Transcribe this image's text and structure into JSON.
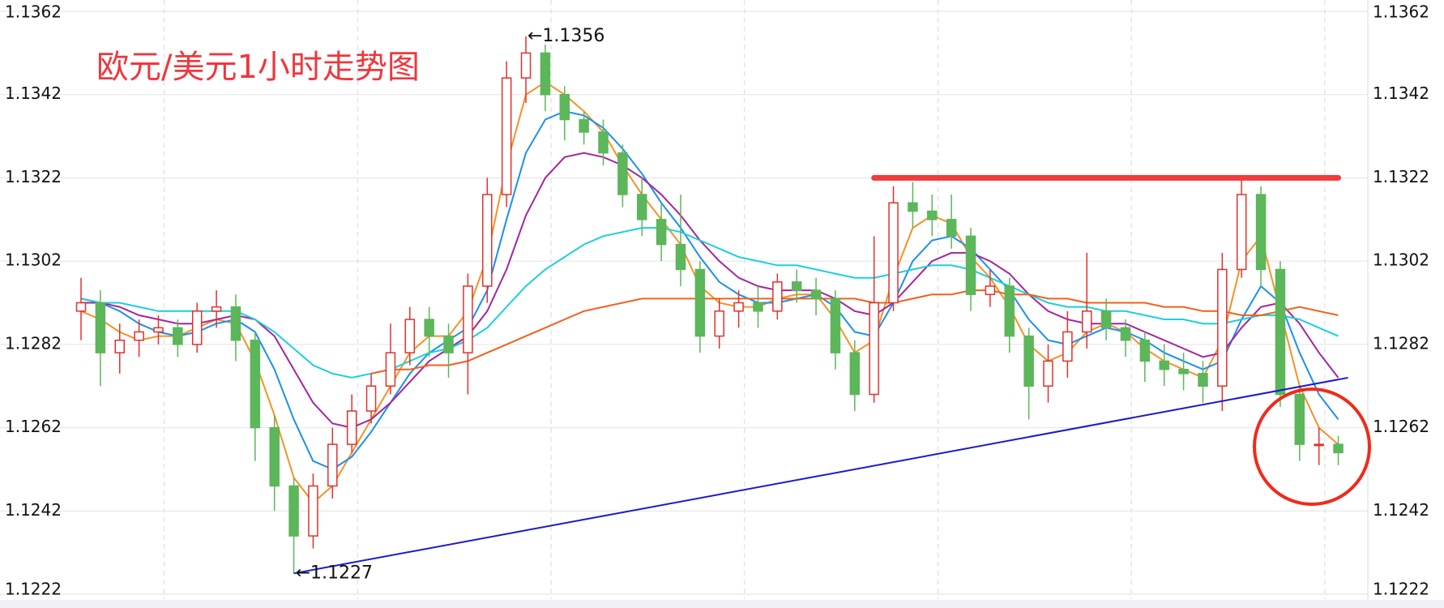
{
  "chart_data": {
    "type": "candlestick",
    "title": "欧元/美元1小时走势图",
    "ylim": [
      1.1222,
      1.1362
    ],
    "yticks": [
      1.1222,
      1.1242,
      1.1262,
      1.1282,
      1.1302,
      1.1322,
      1.1342,
      1.1362
    ],
    "grid": true,
    "up_color": "#e3302d",
    "down_color": "#5cb65a",
    "open": [
      1.129,
      1.1292,
      1.128,
      1.1283,
      1.1285,
      1.1286,
      1.1282,
      1.129,
      1.1291,
      1.1283,
      1.1262,
      1.1248,
      1.1236,
      1.1248,
      1.1258,
      1.1266,
      1.1272,
      1.128,
      1.1288,
      1.1284,
      1.128,
      1.1296,
      1.1318,
      1.1346,
      1.1352,
      1.1342,
      1.1336,
      1.1333,
      1.1328,
      1.1318,
      1.1312,
      1.1306,
      1.13,
      1.1284,
      1.129,
      1.1292,
      1.129,
      1.1297,
      1.1295,
      1.1293,
      1.128,
      1.127,
      1.1292,
      1.1316,
      1.1314,
      1.1312,
      1.1308,
      1.1294,
      1.1296,
      1.1284,
      1.1272,
      1.1278,
      1.1285,
      1.129,
      1.1286,
      1.1283,
      1.1278,
      1.1276,
      1.1275,
      1.1272,
      1.13,
      1.1318,
      1.13,
      1.127,
      1.1258,
      1.1258
    ],
    "high": [
      1.1298,
      1.1295,
      1.1287,
      1.1288,
      1.1289,
      1.1288,
      1.1292,
      1.1295,
      1.1294,
      1.1285,
      1.1265,
      1.125,
      1.1251,
      1.1262,
      1.127,
      1.1275,
      1.1287,
      1.1291,
      1.1291,
      1.1287,
      1.1299,
      1.1322,
      1.135,
      1.1356,
      1.1354,
      1.1344,
      1.1338,
      1.1336,
      1.133,
      1.1322,
      1.1316,
      1.1318,
      1.1302,
      1.1293,
      1.1295,
      1.1296,
      1.1299,
      1.13,
      1.1298,
      1.1295,
      1.1283,
      1.1308,
      1.132,
      1.1321,
      1.1318,
      1.1318,
      1.131,
      1.13,
      1.1298,
      1.1286,
      1.1282,
      1.129,
      1.1304,
      1.1293,
      1.1288,
      1.1285,
      1.1282,
      1.128,
      1.1278,
      1.1304,
      1.1322,
      1.132,
      1.1302,
      1.1272,
      1.1262,
      1.126
    ],
    "low": [
      1.1283,
      1.1272,
      1.1275,
      1.1279,
      1.1282,
      1.1279,
      1.128,
      1.1286,
      1.1278,
      1.1254,
      1.1242,
      1.1227,
      1.1233,
      1.1245,
      1.1256,
      1.1263,
      1.127,
      1.1277,
      1.1279,
      1.1274,
      1.127,
      1.1292,
      1.1315,
      1.134,
      1.1338,
      1.1331,
      1.133,
      1.1325,
      1.1315,
      1.1308,
      1.1302,
      1.1296,
      1.128,
      1.1281,
      1.1286,
      1.1286,
      1.1288,
      1.1292,
      1.1289,
      1.1276,
      1.1266,
      1.1268,
      1.129,
      1.131,
      1.1308,
      1.1305,
      1.129,
      1.1291,
      1.128,
      1.1264,
      1.1268,
      1.1274,
      1.1281,
      1.1283,
      1.1279,
      1.1273,
      1.1272,
      1.1271,
      1.1268,
      1.1266,
      1.1298,
      1.1296,
      1.1267,
      1.1254,
      1.1253,
      1.1253
    ],
    "close": [
      1.1292,
      1.128,
      1.1283,
      1.1285,
      1.1286,
      1.1282,
      1.129,
      1.1291,
      1.1283,
      1.1262,
      1.1248,
      1.1236,
      1.1248,
      1.1258,
      1.1266,
      1.1272,
      1.128,
      1.1288,
      1.1284,
      1.128,
      1.1296,
      1.1318,
      1.1346,
      1.1352,
      1.1342,
      1.1336,
      1.1333,
      1.1328,
      1.1318,
      1.1312,
      1.1306,
      1.13,
      1.1284,
      1.129,
      1.1292,
      1.129,
      1.1297,
      1.1295,
      1.1293,
      1.128,
      1.127,
      1.1292,
      1.1316,
      1.1314,
      1.1312,
      1.1308,
      1.1294,
      1.1296,
      1.1284,
      1.1272,
      1.1278,
      1.1285,
      1.129,
      1.1286,
      1.1283,
      1.1278,
      1.1276,
      1.1275,
      1.1272,
      1.13,
      1.1318,
      1.13,
      1.127,
      1.1258,
      1.1258,
      1.1256
    ],
    "lines": [
      {
        "color": "#f39226",
        "values": [
          1.129,
          1.1288,
          1.1285,
          1.1283,
          1.1284,
          1.1284,
          1.1286,
          1.1288,
          1.1287,
          1.1278,
          1.1265,
          1.125,
          1.1244,
          1.1248,
          1.1256,
          1.1264,
          1.1272,
          1.128,
          1.1284,
          1.1284,
          1.129,
          1.1303,
          1.1325,
          1.1342,
          1.1345,
          1.1342,
          1.1338,
          1.1333,
          1.1325,
          1.1318,
          1.1312,
          1.1306,
          1.1296,
          1.1292,
          1.1291,
          1.1291,
          1.1293,
          1.1294,
          1.1294,
          1.1288,
          1.128,
          1.1283,
          1.1298,
          1.131,
          1.1313,
          1.1311,
          1.1303,
          1.1298,
          1.1291,
          1.1282,
          1.1278,
          1.128,
          1.1285,
          1.1287,
          1.1285,
          1.1281,
          1.1278,
          1.1276,
          1.1274,
          1.1283,
          1.1302,
          1.1308,
          1.129,
          1.1272,
          1.1262,
          1.1258
        ]
      },
      {
        "color": "#1c8ff0",
        "values": [
          1.1293,
          1.1292,
          1.129,
          1.1287,
          1.1285,
          1.1284,
          1.1285,
          1.1287,
          1.1288,
          1.1285,
          1.1276,
          1.1264,
          1.1254,
          1.1252,
          1.1255,
          1.1261,
          1.1268,
          1.1275,
          1.128,
          1.1283,
          1.1286,
          1.1295,
          1.1312,
          1.1328,
          1.1336,
          1.1338,
          1.1337,
          1.1334,
          1.1329,
          1.1323,
          1.1316,
          1.131,
          1.1303,
          1.1297,
          1.1294,
          1.1292,
          1.1292,
          1.1293,
          1.1294,
          1.1291,
          1.1285,
          1.1284,
          1.1292,
          1.1302,
          1.1307,
          1.1308,
          1.1305,
          1.13,
          1.1295,
          1.1288,
          1.1283,
          1.1282,
          1.1284,
          1.1286,
          1.1285,
          1.1283,
          1.128,
          1.1278,
          1.1276,
          1.1278,
          1.1288,
          1.1296,
          1.1292,
          1.128,
          1.127,
          1.1264
        ]
      },
      {
        "color": "#a5259e",
        "values": [
          1.1292,
          1.1292,
          1.1291,
          1.1289,
          1.1288,
          1.1287,
          1.1287,
          1.1288,
          1.1289,
          1.1288,
          1.1284,
          1.1276,
          1.1268,
          1.1263,
          1.1262,
          1.1264,
          1.1268,
          1.1273,
          1.1278,
          1.1281,
          1.1284,
          1.129,
          1.13,
          1.1313,
          1.1322,
          1.1327,
          1.1328,
          1.1327,
          1.1325,
          1.1322,
          1.1318,
          1.1313,
          1.1307,
          1.1302,
          1.1298,
          1.1296,
          1.1295,
          1.1295,
          1.1295,
          1.1293,
          1.129,
          1.1289,
          1.1292,
          1.1297,
          1.1302,
          1.1304,
          1.1304,
          1.1302,
          1.1299,
          1.1294,
          1.129,
          1.1288,
          1.1287,
          1.1287,
          1.1287,
          1.1285,
          1.1283,
          1.1281,
          1.1279,
          1.128,
          1.1286,
          1.1291,
          1.1292,
          1.1287,
          1.128,
          1.1274
        ]
      },
      {
        "color": "#1ccfdc",
        "values": [
          1.1293,
          1.1292,
          1.1292,
          1.1291,
          1.129,
          1.129,
          1.129,
          1.129,
          1.129,
          1.1288,
          1.1285,
          1.1281,
          1.1277,
          1.1275,
          1.1274,
          1.1275,
          1.1276,
          1.1278,
          1.128,
          1.1281,
          1.1283,
          1.1286,
          1.1291,
          1.1296,
          1.13,
          1.1303,
          1.1306,
          1.1308,
          1.1309,
          1.131,
          1.131,
          1.1309,
          1.1307,
          1.1305,
          1.1303,
          1.1302,
          1.1301,
          1.1301,
          1.13,
          1.1299,
          1.1298,
          1.1298,
          1.1299,
          1.13,
          1.1301,
          1.1301,
          1.13,
          1.1298,
          1.1296,
          1.1294,
          1.1292,
          1.1291,
          1.1291,
          1.129,
          1.129,
          1.1289,
          1.1288,
          1.1288,
          1.1287,
          1.1287,
          1.1288,
          1.1289,
          1.1289,
          1.1288,
          1.1286,
          1.1284
        ]
      },
      {
        "color": "#f2601b",
        "values": [
          null,
          null,
          null,
          null,
          null,
          null,
          null,
          null,
          null,
          null,
          null,
          null,
          null,
          null,
          null,
          1.1275,
          1.1276,
          1.1276,
          1.1277,
          1.1277,
          1.1278,
          1.128,
          1.1282,
          1.1284,
          1.1286,
          1.1288,
          1.129,
          1.1291,
          1.1292,
          1.1293,
          1.1293,
          1.1293,
          1.1293,
          1.1293,
          1.1293,
          1.1293,
          1.1293,
          1.1293,
          1.1293,
          1.1293,
          1.1293,
          1.1292,
          1.1292,
          1.1293,
          1.1294,
          1.1294,
          1.1295,
          1.1295,
          1.1294,
          1.1294,
          1.1293,
          1.1293,
          1.1292,
          1.1292,
          1.1292,
          1.1292,
          1.1291,
          1.1291,
          1.129,
          1.129,
          1.1289,
          1.1289,
          1.129,
          1.1291,
          1.129,
          1.1289
        ]
      }
    ],
    "reference_lines": [
      {
        "color": "#f03c3c",
        "x": [
          41,
          65
        ],
        "y": [
          1.1322,
          1.1322
        ]
      },
      {
        "color": "#1a1acd",
        "x": [
          11,
          65.5
        ],
        "y": [
          1.1227,
          1.1274
        ]
      }
    ],
    "annotations": [
      {
        "text": "←1.1356",
        "x": 23,
        "y": 1.1356
      },
      {
        "text": "←1.1227",
        "x": 11,
        "y": 1.1227
      }
    ]
  }
}
